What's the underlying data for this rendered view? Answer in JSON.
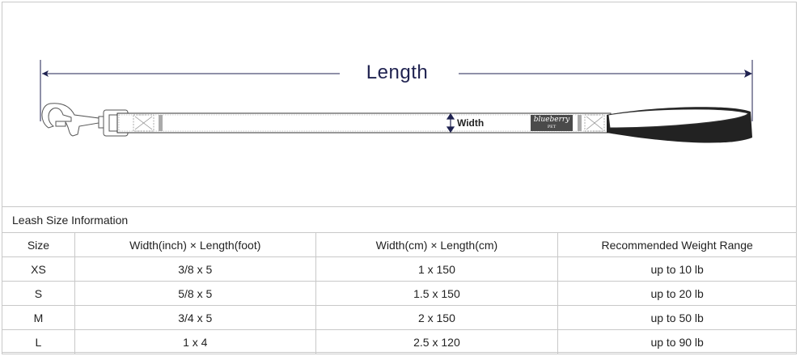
{
  "diagram": {
    "length_label": "Length",
    "width_label": "Width",
    "brand_logo": "blueberry PET",
    "colors": {
      "arrow": "#1f2250",
      "handle": "#222222",
      "brand_tag": "#4a4a4a"
    }
  },
  "table": {
    "title": "Leash Size Information",
    "headers": [
      "Size",
      "Width(inch)  × Length(foot)",
      "Width(cm)  × Length(cm)",
      "Recommended Weight Range"
    ],
    "rows": [
      [
        "XS",
        "3/8 x 5",
        "1 x 150",
        "up to 10 lb"
      ],
      [
        "S",
        "5/8 x 5",
        "1.5 x 150",
        "up to 20 lb"
      ],
      [
        "M",
        "3/4 x 5",
        "2 x 150",
        "up to 50 lb"
      ],
      [
        "L",
        "1 x 4",
        "2.5 x 120",
        "up to 90 lb"
      ]
    ]
  }
}
